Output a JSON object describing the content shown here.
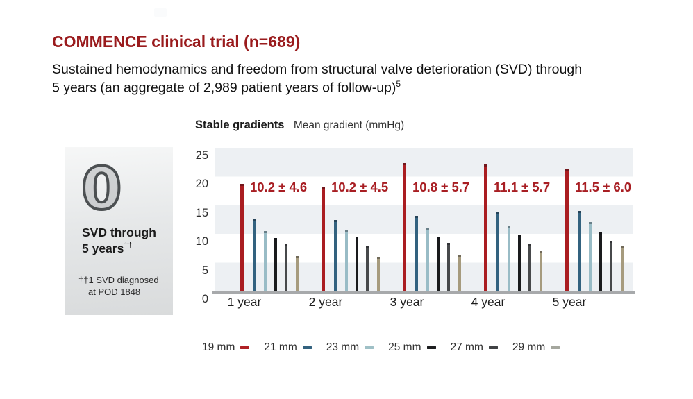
{
  "page": {
    "title_main": "COMMENCE clinical trial",
    "title_suffix": " (n=689)",
    "subtitle_line1": "Sustained hemodynamics and freedom from structural valve deterioration (SVD) through",
    "subtitle_line2": "5 years (an aggregate of 2,989 patient years of follow-up)",
    "subtitle_superscript": "5"
  },
  "chart_header": {
    "bold": "Stable gradients",
    "regular": "Mean gradient (mmHg)"
  },
  "panel": {
    "zero_value": "0",
    "caption_line1": "SVD through",
    "caption_line2": "5 years",
    "caption_daggers": "††",
    "footnote_line1": "††1 SVD diagnosed",
    "footnote_line2": "at POD 1848"
  },
  "chart_data": {
    "type": "bar",
    "title": "Stable gradients — Mean gradient (mmHg)",
    "xlabel": "",
    "ylabel": "Mean gradient (mmHg)",
    "ylim": [
      0,
      25
    ],
    "y_ticks": [
      25,
      20,
      15,
      10,
      5,
      0
    ],
    "grid": "horizontal-stripes",
    "legend_position": "bottom",
    "categories": [
      "1 year",
      "2 year",
      "3 year",
      "4 year",
      "5 year"
    ],
    "series": [
      {
        "name": "19 mm",
        "color": "#aa1d21",
        "values": [
          18.7,
          18.1,
          22.4,
          22.1,
          21.4
        ]
      },
      {
        "name": "21 mm",
        "color": "#33627f",
        "values": [
          12.6,
          12.4,
          13.2,
          13.8,
          14.0
        ]
      },
      {
        "name": "23 mm",
        "color": "#99bcc6",
        "values": [
          10.5,
          10.6,
          11.0,
          11.3,
          12.1
        ]
      },
      {
        "name": "25 mm",
        "color": "#1a1b1d",
        "values": [
          9.3,
          9.4,
          9.4,
          9.9,
          10.3
        ]
      },
      {
        "name": "27 mm",
        "color": "#47494b",
        "values": [
          8.2,
          8.0,
          8.5,
          8.2,
          8.8
        ]
      },
      {
        "name": "29 mm",
        "color": "#a69b7e",
        "values": [
          6.2,
          6.1,
          6.4,
          7.0,
          8.0
        ]
      }
    ],
    "annotations": [
      "10.2 ± 4.6",
      "10.2 ± 4.5",
      "10.8 ± 5.7",
      "11.1 ± 5.7",
      "11.5 ± 6.0"
    ]
  },
  "legend": {
    "items": [
      {
        "label": "19 mm",
        "color": "#b02125"
      },
      {
        "label": "21 mm",
        "color": "#33627f"
      },
      {
        "label": "23 mm",
        "color": "#9fc0c6"
      },
      {
        "label": "25 mm",
        "color": "#1d1e20"
      },
      {
        "label": "27 mm",
        "color": "#404244"
      },
      {
        "label": "29 mm",
        "color": "#a5a79e"
      }
    ]
  }
}
